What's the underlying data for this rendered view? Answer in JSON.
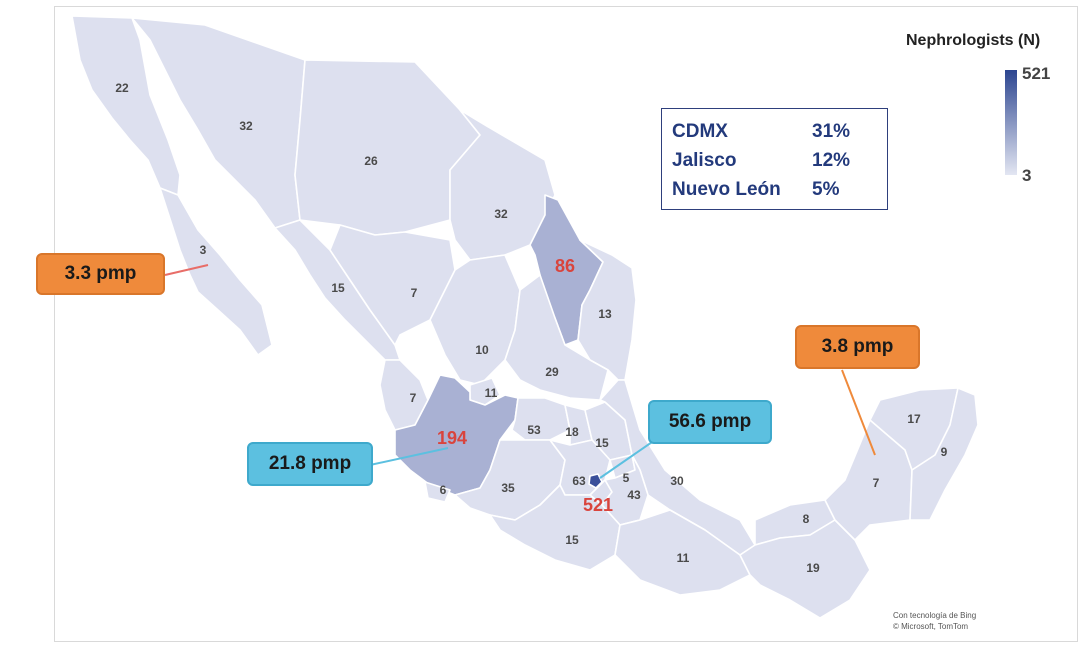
{
  "legend": {
    "title": "Nephrologists (N)",
    "max_label": "521",
    "min_label": "3",
    "color_high": "#2c4590",
    "color_low": "#e3e6f2"
  },
  "share_box": {
    "rows": [
      {
        "state": "CDMX",
        "pct": "31%"
      },
      {
        "state": "Jalisco",
        "pct": "12%"
      },
      {
        "state": "Nuevo León",
        "pct": "5%"
      }
    ]
  },
  "callouts": [
    {
      "text": "3.3 pmp",
      "color": "#ef8a3b"
    },
    {
      "text": "3.8 pmp",
      "color": "#ef8a3b"
    },
    {
      "text": "21.8 pmp",
      "color": "#5cc0e0"
    },
    {
      "text": "56.6 pmp",
      "color": "#5cc0e0"
    }
  ],
  "state_counts": [
    "22",
    "32",
    "26",
    "32",
    "3",
    "86",
    "15",
    "7",
    "13",
    "10",
    "29",
    "11",
    "7",
    "194",
    "53",
    "18",
    "15",
    "6",
    "35",
    "63",
    "5",
    "43",
    "30",
    "521",
    "15",
    "11",
    "8",
    "19",
    "7",
    "17",
    "9"
  ],
  "attribution": {
    "line1": "Con tecnología de Bing",
    "line2": "© Microsoft, TomTom"
  }
}
